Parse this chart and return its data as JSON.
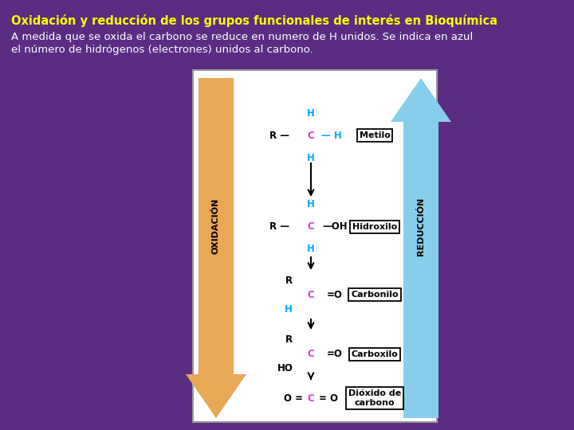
{
  "bg_color": "#5a2d82",
  "title": "Oxidación y reducción de los grupos funcionales de interés en Bioquímica",
  "title_color": "#ffff00",
  "title_fontsize": 10.5,
  "subtitle_line1": "A medida que se oxida el carbono se reduce en numero de H unidos. Se indica en azul",
  "subtitle_line2": "el número de hidrógenos (electrones) unidos al carbono.",
  "subtitle_color": "#ffffff",
  "subtitle_fontsize": 9.5,
  "panel_bg": "#ffffff",
  "arrow_ox_color": "#e8a855",
  "arrow_re_color": "#87CEEB",
  "C_color": "#cc44cc",
  "H_color": "#00aaff",
  "black_color": "#000000",
  "gray_color": "#555555"
}
